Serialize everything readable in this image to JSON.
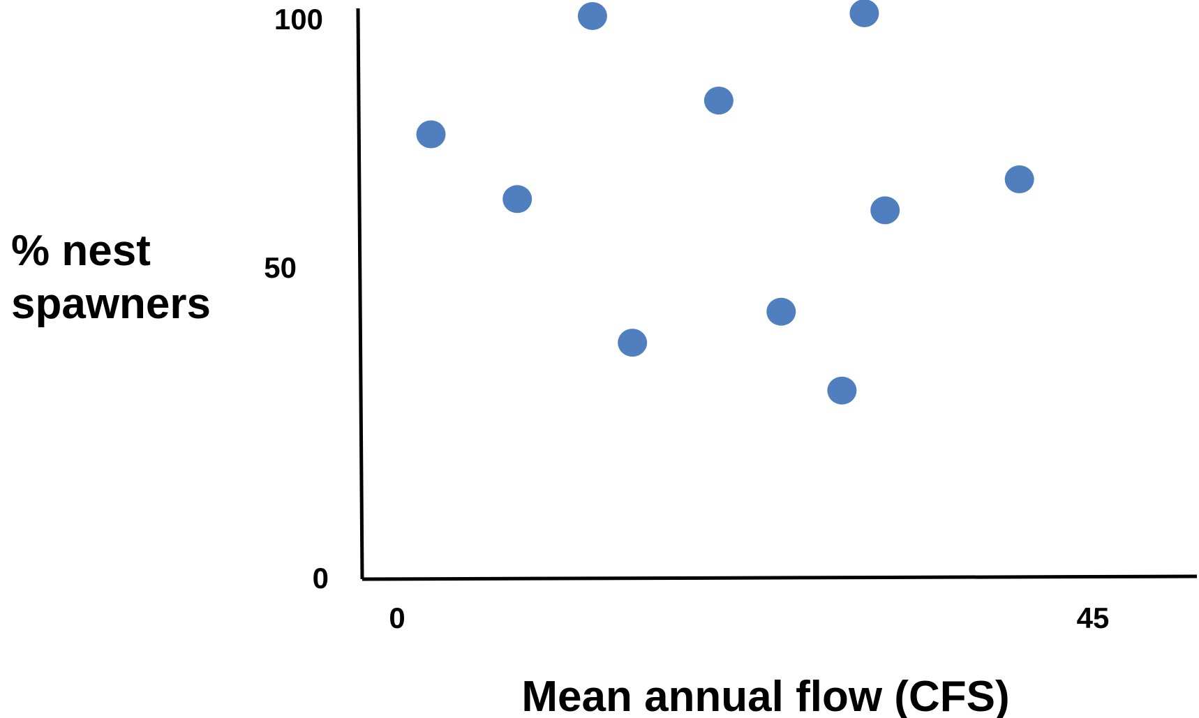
{
  "chart_data": {
    "type": "scatter",
    "title": "",
    "xlabel": "Mean annual flow (CFS)",
    "ylabel": [
      "% nest",
      "spawners"
    ],
    "xlim": [
      -2.2,
      50
    ],
    "ylim": [
      0,
      100
    ],
    "x_ticks": [
      {
        "value": 0,
        "label": "0"
      },
      {
        "value": 45,
        "label": "45"
      }
    ],
    "y_ticks": [
      {
        "value": 0,
        "label": "0"
      },
      {
        "value": 50,
        "label": "50"
      },
      {
        "value": 100,
        "label": "100"
      }
    ],
    "grid": false,
    "legend": "none",
    "marker_color": "#4F7FBF",
    "axis_color": "#000000",
    "series": [
      {
        "points": [
          {
            "x": 2.1,
            "y": 79
          },
          {
            "x": 7.5,
            "y": 67.5
          },
          {
            "x": 12.2,
            "y": 100
          },
          {
            "x": 14.7,
            "y": 42
          },
          {
            "x": 20.1,
            "y": 85
          },
          {
            "x": 24.0,
            "y": 47.5
          },
          {
            "x": 27.8,
            "y": 33.5
          },
          {
            "x": 29.2,
            "y": 100.5
          },
          {
            "x": 30.5,
            "y": 65.5
          },
          {
            "x": 38.9,
            "y": 71
          }
        ]
      }
    ]
  }
}
